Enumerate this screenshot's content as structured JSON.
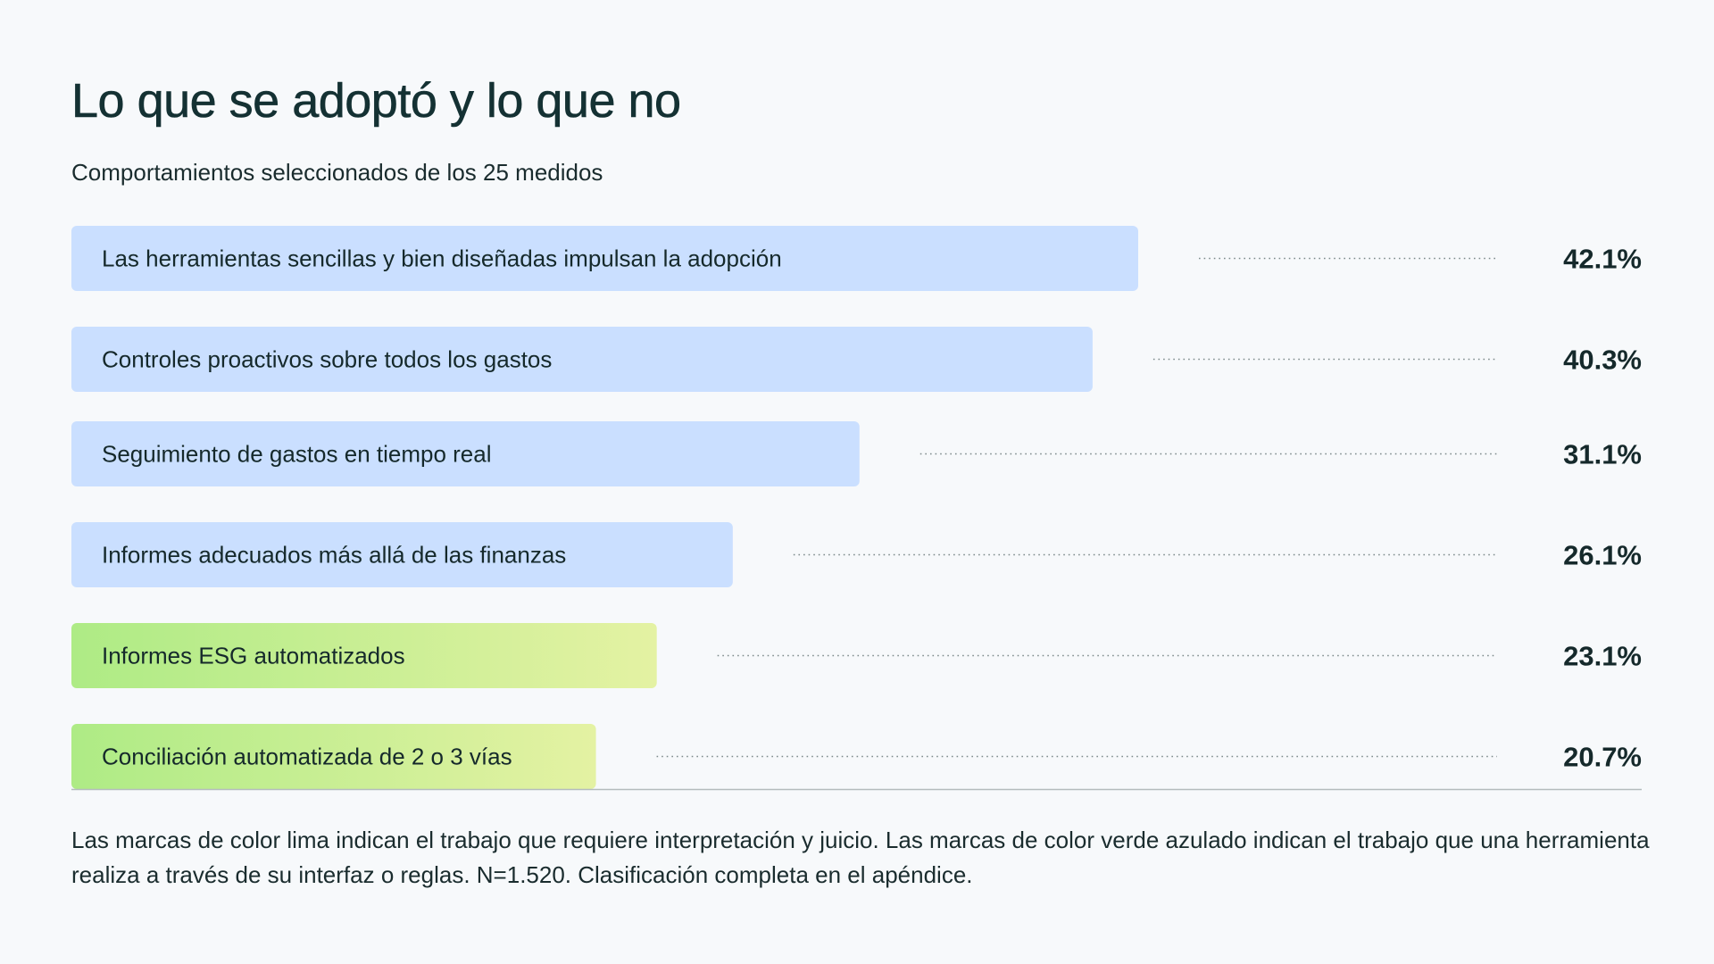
{
  "title": "Lo que se adoptó y lo que no",
  "subtitle": "Comportamientos seleccionados de los 25 medidos",
  "footnote": "Las marcas de color lima indican el trabajo que requiere interpretación y juicio. Las marcas de color verde azulado indican el trabajo que una herramienta realiza a través de su interfaz o reglas. N=1.520. Clasificación completa en el apéndice.",
  "colors": {
    "blue_bar": "#cadfff",
    "lime_start": "#aeeb85",
    "lime_end": "#e4f2a3",
    "text": "#15292b",
    "dots": "#7d8a8b",
    "baseline": "#b4bcbd"
  },
  "chart_data": {
    "type": "bar",
    "orientation": "horizontal",
    "categories": [
      "Las herramientas sencillas y bien diseñadas impulsan la adopción",
      "Controles proactivos sobre todos los gastos",
      "Seguimiento de gastos en tiempo real",
      "Informes adecuados más allá de las finanzas",
      "Informes ESG automatizados",
      "Conciliación automatizada de 2 o 3 vías"
    ],
    "values": [
      42.1,
      40.3,
      31.1,
      26.1,
      23.1,
      20.7
    ],
    "value_labels": [
      "42.1%",
      "40.3%",
      "31.1%",
      "26.1%",
      "23.1%",
      "20.7%"
    ],
    "groups": [
      "blue",
      "blue",
      "blue",
      "blue",
      "lime",
      "lime"
    ],
    "unit": "%",
    "xlim": [
      0,
      64
    ]
  }
}
